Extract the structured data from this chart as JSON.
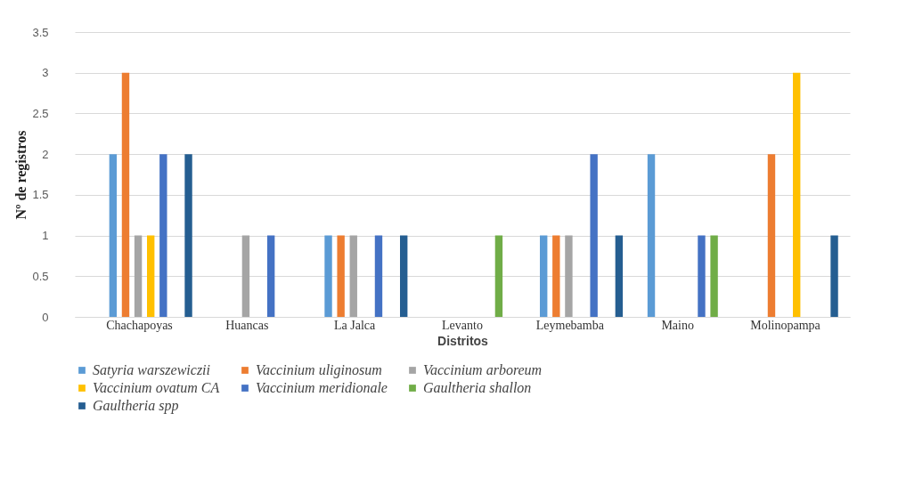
{
  "chart_data": {
    "type": "bar",
    "xlabel": "Distritos",
    "ylabel": "Nº de registros",
    "categories": [
      "Chachapoyas",
      "Huancas",
      "La Jalca",
      "Levanto",
      "Leymebamba",
      "Maino",
      "Molinopampa"
    ],
    "series": [
      {
        "name": "Satyria warszewiczii",
        "color": "#5b9bd5",
        "values": [
          2,
          0,
          1,
          0,
          1,
          2,
          0
        ]
      },
      {
        "name": "Vaccinium uliginosum",
        "color": "#ed7d31",
        "values": [
          3,
          0,
          1,
          0,
          1,
          0,
          2
        ]
      },
      {
        "name": "Vaccinium arboreum",
        "color": "#a5a5a5",
        "values": [
          1,
          1,
          1,
          0,
          1,
          0,
          0
        ]
      },
      {
        "name": "Vaccinium ovatum CA",
        "color": "#ffc000",
        "values": [
          1,
          0,
          0,
          0,
          0,
          0,
          3
        ]
      },
      {
        "name": "Vaccinium meridionale",
        "color": "#4472c4",
        "values": [
          2,
          1,
          1,
          0,
          2,
          1,
          0
        ]
      },
      {
        "name": "Gaultheria shallon",
        "color": "#70ad47",
        "values": [
          0,
          0,
          0,
          1,
          0,
          1,
          0
        ]
      },
      {
        "name": "Gaultheria spp",
        "color": "#255e91",
        "values": [
          2,
          0,
          1,
          0,
          1,
          0,
          1
        ]
      }
    ],
    "ylim": [
      0,
      3.5
    ],
    "yticks": [
      0,
      0.5,
      1,
      1.5,
      2,
      2.5,
      3,
      3.5
    ],
    "grid": "y",
    "legend": "bottom"
  }
}
